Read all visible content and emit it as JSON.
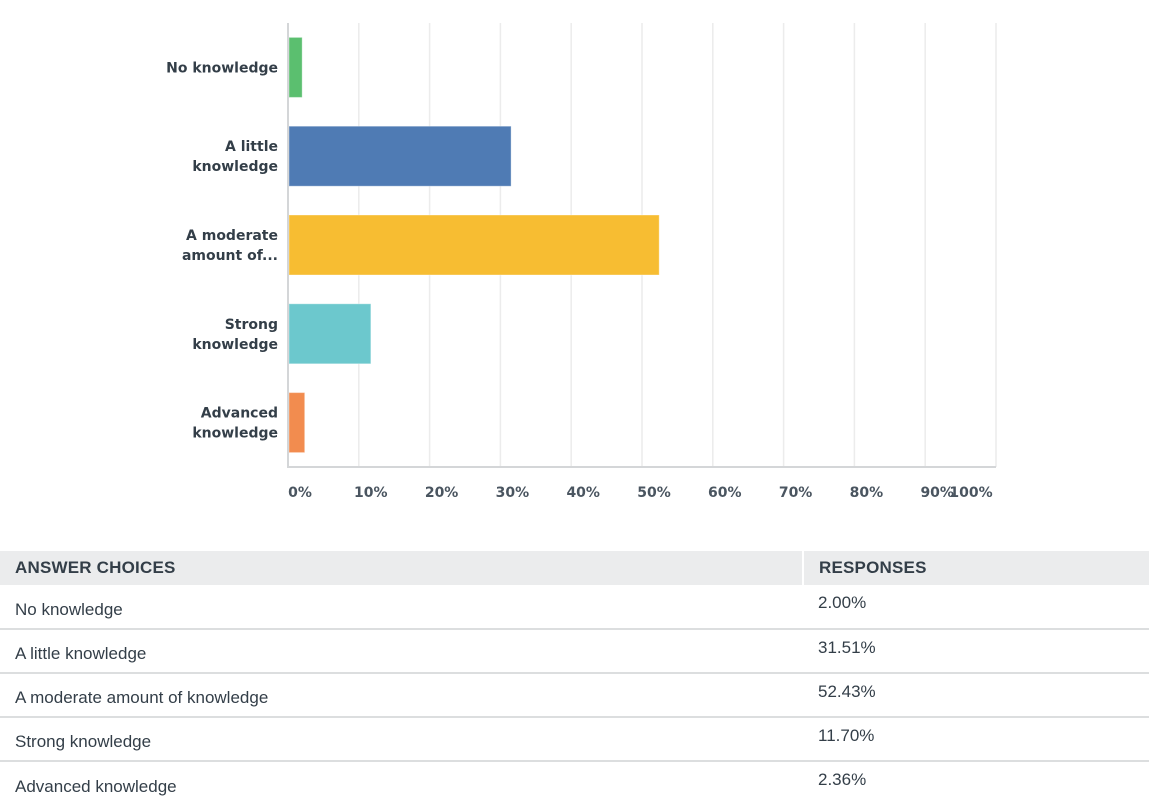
{
  "chart_data": {
    "type": "bar",
    "orientation": "horizontal",
    "title": "",
    "xlabel": "",
    "ylabel": "",
    "xlim": [
      0,
      100
    ],
    "grid": true,
    "x_ticks": [
      "0%",
      "10%",
      "20%",
      "30%",
      "40%",
      "50%",
      "60%",
      "70%",
      "80%",
      "90%",
      "100%"
    ],
    "categories": [
      [
        "No knowledge"
      ],
      [
        "A little",
        "knowledge"
      ],
      [
        "A moderate",
        "amount of..."
      ],
      [
        "Strong",
        "knowledge"
      ],
      [
        "Advanced",
        "knowledge"
      ]
    ],
    "values": [
      2.0,
      31.51,
      52.43,
      11.7,
      2.36
    ],
    "colors": [
      "#5bbf6f",
      "#4f7bb4",
      "#f7bd32",
      "#6cc8cd",
      "#f28c4f"
    ]
  },
  "table": {
    "headers": {
      "choices": "ANSWER CHOICES",
      "responses": "RESPONSES"
    },
    "rows": [
      {
        "choice": "No knowledge",
        "response": "2.00%"
      },
      {
        "choice": "A little knowledge",
        "response": "31.51%"
      },
      {
        "choice": "A moderate amount of knowledge",
        "response": "52.43%"
      },
      {
        "choice": "Strong knowledge",
        "response": "11.70%"
      },
      {
        "choice": "Advanced knowledge",
        "response": "2.36%"
      }
    ]
  }
}
